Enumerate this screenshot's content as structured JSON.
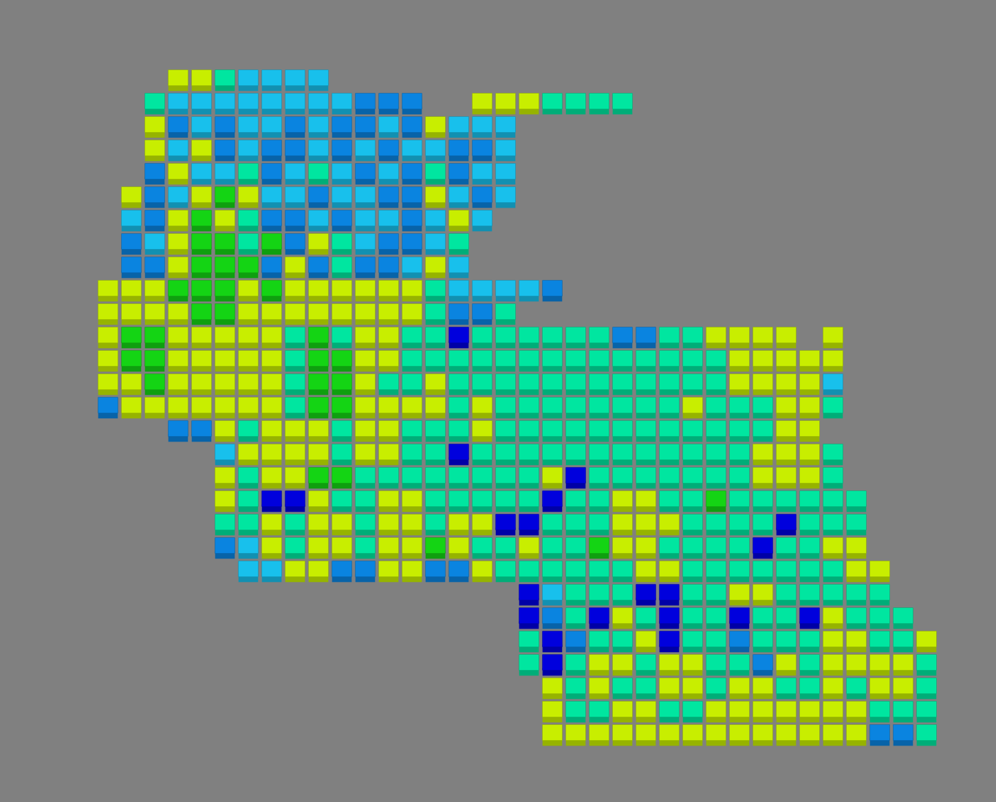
{
  "chart_data": {
    "type": "voxel",
    "tick_labels": false,
    "colors": [
      "#0000dd",
      "#0a84e0",
      "#18c0ec",
      "#00e6a0",
      "#14d414",
      "#c8ee00"
    ],
    "cells": [
      [
        null,
        null,
        null,
        5,
        5,
        3,
        2,
        2,
        2,
        2,
        null,
        null,
        null,
        null,
        null,
        null,
        null,
        null,
        null,
        null,
        null,
        null,
        null,
        null,
        null,
        null,
        null,
        null,
        null,
        null,
        null,
        null,
        null,
        null,
        null,
        null
      ],
      [
        null,
        null,
        3,
        2,
        2,
        2,
        2,
        2,
        2,
        2,
        2,
        1,
        1,
        1,
        null,
        null,
        5,
        5,
        5,
        3,
        3,
        3,
        3,
        null,
        null,
        null,
        null,
        null,
        null,
        null,
        null,
        null,
        null,
        null,
        null,
        null
      ],
      [
        null,
        null,
        5,
        1,
        2,
        1,
        2,
        2,
        1,
        2,
        1,
        1,
        2,
        1,
        5,
        2,
        2,
        2,
        null,
        null,
        null,
        null,
        null,
        null,
        null,
        null,
        null,
        null,
        null,
        null,
        null,
        null,
        null,
        null,
        null,
        null
      ],
      [
        null,
        null,
        5,
        2,
        5,
        1,
        2,
        1,
        1,
        2,
        1,
        2,
        1,
        2,
        2,
        1,
        1,
        2,
        null,
        null,
        null,
        null,
        null,
        null,
        null,
        null,
        null,
        null,
        null,
        null,
        null,
        null,
        null,
        null,
        null,
        null
      ],
      [
        null,
        null,
        1,
        5,
        2,
        2,
        3,
        1,
        2,
        3,
        2,
        1,
        2,
        1,
        3,
        1,
        2,
        2,
        null,
        null,
        null,
        null,
        null,
        null,
        null,
        null,
        null,
        null,
        null,
        null,
        null,
        null,
        null,
        null,
        null,
        null
      ],
      [
        null,
        5,
        1,
        2,
        5,
        4,
        5,
        2,
        2,
        1,
        2,
        2,
        1,
        1,
        5,
        2,
        1,
        2,
        null,
        null,
        null,
        null,
        null,
        null,
        null,
        null,
        null,
        null,
        null,
        null,
        null,
        null,
        null,
        null,
        null,
        null
      ],
      [
        null,
        2,
        1,
        5,
        4,
        5,
        3,
        1,
        1,
        2,
        1,
        2,
        2,
        1,
        2,
        5,
        2,
        null,
        null,
        null,
        null,
        null,
        null,
        null,
        null,
        null,
        null,
        null,
        null,
        null,
        null,
        null,
        null,
        null,
        null,
        null
      ],
      [
        null,
        1,
        2,
        5,
        4,
        4,
        3,
        4,
        1,
        5,
        3,
        2,
        1,
        1,
        2,
        3,
        null,
        null,
        null,
        null,
        null,
        null,
        null,
        null,
        null,
        null,
        null,
        null,
        null,
        null,
        null,
        null,
        null,
        null,
        null,
        null
      ],
      [
        null,
        1,
        1,
        5,
        4,
        4,
        4,
        1,
        5,
        1,
        3,
        1,
        1,
        2,
        5,
        2,
        null,
        null,
        null,
        null,
        null,
        null,
        null,
        null,
        null,
        null,
        null,
        null,
        null,
        null,
        null,
        null,
        null,
        null,
        null,
        null
      ],
      [
        5,
        5,
        5,
        4,
        4,
        4,
        5,
        4,
        5,
        5,
        5,
        5,
        5,
        5,
        3,
        2,
        2,
        2,
        2,
        1,
        null,
        null,
        null,
        null,
        null,
        null,
        null,
        null,
        null,
        null,
        null,
        null,
        null,
        null,
        null,
        null
      ],
      [
        5,
        5,
        5,
        5,
        4,
        4,
        5,
        5,
        5,
        5,
        5,
        5,
        5,
        5,
        3,
        1,
        1,
        3,
        null,
        null,
        null,
        null,
        null,
        null,
        null,
        null,
        null,
        null,
        null,
        null,
        null,
        null,
        null,
        null,
        null,
        null
      ],
      [
        5,
        4,
        4,
        5,
        5,
        5,
        5,
        5,
        3,
        4,
        3,
        5,
        5,
        3,
        3,
        0,
        3,
        3,
        3,
        3,
        3,
        3,
        1,
        1,
        3,
        3,
        5,
        5,
        5,
        5,
        null,
        5,
        null,
        null,
        null,
        null
      ],
      [
        5,
        4,
        4,
        5,
        5,
        5,
        5,
        5,
        3,
        4,
        4,
        5,
        5,
        3,
        3,
        3,
        3,
        3,
        3,
        3,
        3,
        3,
        3,
        3,
        3,
        3,
        3,
        5,
        5,
        5,
        5,
        5,
        null,
        null,
        null,
        null
      ],
      [
        5,
        5,
        4,
        5,
        5,
        5,
        5,
        5,
        3,
        4,
        4,
        5,
        3,
        3,
        5,
        3,
        3,
        3,
        3,
        3,
        3,
        3,
        3,
        3,
        3,
        3,
        3,
        5,
        5,
        5,
        5,
        2,
        null,
        null,
        null,
        null
      ],
      [
        1,
        5,
        5,
        5,
        5,
        5,
        5,
        5,
        3,
        4,
        4,
        5,
        5,
        5,
        5,
        3,
        5,
        3,
        3,
        3,
        3,
        3,
        3,
        3,
        3,
        5,
        3,
        3,
        3,
        5,
        5,
        3,
        null,
        null,
        null,
        null
      ],
      [
        null,
        null,
        null,
        1,
        1,
        5,
        3,
        5,
        5,
        5,
        3,
        5,
        5,
        3,
        3,
        3,
        5,
        3,
        3,
        3,
        3,
        3,
        3,
        3,
        3,
        3,
        3,
        3,
        3,
        5,
        5,
        null,
        null,
        null,
        null,
        null
      ],
      [
        null,
        null,
        null,
        null,
        null,
        2,
        5,
        5,
        5,
        5,
        3,
        5,
        5,
        3,
        3,
        0,
        3,
        3,
        3,
        3,
        3,
        3,
        3,
        3,
        3,
        3,
        3,
        3,
        5,
        5,
        5,
        3,
        null,
        null,
        null,
        null
      ],
      [
        null,
        null,
        null,
        null,
        null,
        5,
        3,
        5,
        5,
        4,
        4,
        3,
        3,
        3,
        3,
        3,
        3,
        3,
        3,
        5,
        0,
        3,
        3,
        3,
        3,
        3,
        3,
        3,
        5,
        5,
        5,
        3,
        null,
        null,
        null,
        null
      ],
      [
        null,
        null,
        null,
        null,
        null,
        5,
        3,
        0,
        0,
        5,
        3,
        3,
        5,
        5,
        3,
        3,
        3,
        3,
        3,
        0,
        3,
        3,
        5,
        5,
        3,
        3,
        4,
        3,
        3,
        3,
        3,
        3,
        3,
        null,
        null,
        null
      ],
      [
        null,
        null,
        null,
        null,
        null,
        3,
        3,
        5,
        3,
        5,
        5,
        3,
        5,
        5,
        3,
        5,
        5,
        0,
        0,
        3,
        3,
        3,
        5,
        5,
        5,
        3,
        3,
        3,
        3,
        0,
        3,
        3,
        3,
        null,
        null,
        null
      ],
      [
        null,
        null,
        null,
        null,
        null,
        1,
        2,
        5,
        3,
        5,
        5,
        3,
        5,
        5,
        4,
        5,
        3,
        3,
        5,
        3,
        3,
        4,
        5,
        5,
        3,
        3,
        3,
        3,
        0,
        3,
        3,
        5,
        5,
        null,
        null,
        null
      ],
      [
        null,
        null,
        null,
        null,
        null,
        null,
        2,
        2,
        5,
        5,
        1,
        1,
        5,
        5,
        1,
        1,
        5,
        3,
        3,
        3,
        3,
        3,
        3,
        5,
        5,
        3,
        3,
        3,
        3,
        3,
        3,
        3,
        5,
        5,
        null,
        null
      ],
      [
        null,
        null,
        null,
        null,
        null,
        null,
        null,
        null,
        null,
        null,
        null,
        null,
        null,
        null,
        null,
        null,
        null,
        null,
        0,
        2,
        3,
        3,
        3,
        0,
        0,
        3,
        3,
        5,
        5,
        3,
        3,
        3,
        3,
        3,
        null,
        null
      ],
      [
        null,
        null,
        null,
        null,
        null,
        null,
        null,
        null,
        null,
        null,
        null,
        null,
        null,
        null,
        null,
        null,
        null,
        null,
        0,
        1,
        3,
        0,
        5,
        3,
        0,
        3,
        3,
        0,
        3,
        3,
        0,
        5,
        3,
        3,
        3,
        null
      ],
      [
        null,
        null,
        null,
        null,
        null,
        null,
        null,
        null,
        null,
        null,
        null,
        null,
        null,
        null,
        null,
        null,
        null,
        null,
        3,
        0,
        1,
        3,
        3,
        5,
        0,
        3,
        3,
        1,
        3,
        3,
        3,
        5,
        5,
        3,
        3,
        5
      ],
      [
        null,
        null,
        null,
        null,
        null,
        null,
        null,
        null,
        null,
        null,
        null,
        null,
        null,
        null,
        null,
        null,
        null,
        null,
        3,
        0,
        3,
        5,
        5,
        3,
        5,
        5,
        3,
        3,
        1,
        5,
        3,
        5,
        5,
        5,
        5,
        3
      ],
      [
        null,
        null,
        null,
        null,
        null,
        null,
        null,
        null,
        null,
        null,
        null,
        null,
        null,
        null,
        null,
        null,
        null,
        null,
        null,
        5,
        3,
        5,
        3,
        3,
        5,
        5,
        3,
        5,
        5,
        3,
        3,
        5,
        3,
        5,
        5,
        3
      ],
      [
        null,
        null,
        null,
        null,
        null,
        null,
        null,
        null,
        null,
        null,
        null,
        null,
        null,
        null,
        null,
        null,
        null,
        null,
        null,
        5,
        3,
        3,
        5,
        5,
        3,
        3,
        5,
        5,
        5,
        5,
        5,
        5,
        5,
        3,
        3,
        3
      ],
      [
        null,
        null,
        null,
        null,
        null,
        null,
        null,
        null,
        null,
        null,
        null,
        null,
        null,
        null,
        null,
        null,
        null,
        null,
        null,
        5,
        5,
        5,
        5,
        5,
        5,
        5,
        5,
        5,
        5,
        5,
        5,
        5,
        5,
        1,
        1,
        3
      ]
    ]
  }
}
